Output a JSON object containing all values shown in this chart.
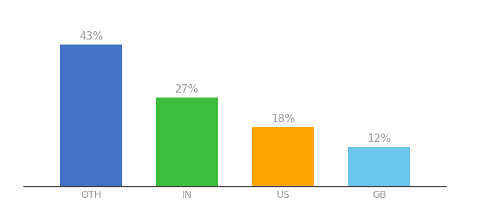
{
  "categories": [
    "OTH",
    "IN",
    "US",
    "GB"
  ],
  "values": [
    43,
    27,
    18,
    12
  ],
  "labels": [
    "43%",
    "27%",
    "18%",
    "12%"
  ],
  "bar_colors": [
    "#4472C4",
    "#3DBE3D",
    "#FFA500",
    "#6CC5EA"
  ],
  "ylim": [
    0,
    50
  ],
  "background_color": "#ffffff",
  "label_color": "#999999",
  "tick_label_color": "#999999",
  "label_fontsize": 11,
  "tick_fontsize": 10,
  "bar_width": 0.65
}
